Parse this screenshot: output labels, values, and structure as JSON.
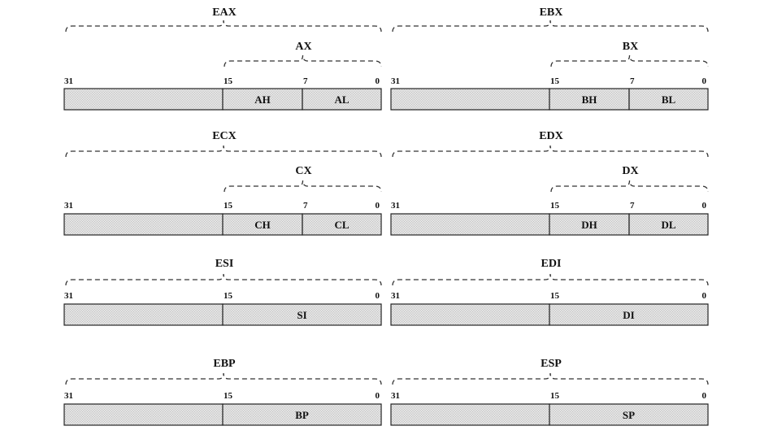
{
  "registers": [
    {
      "name": "EAX",
      "sub": "AX",
      "bits": [
        "31",
        "15",
        "7",
        "0"
      ],
      "parts": [
        "AH",
        "AL"
      ]
    },
    {
      "name": "EBX",
      "sub": "BX",
      "bits": [
        "31",
        "15",
        "7",
        "0"
      ],
      "parts": [
        "BH",
        "BL"
      ]
    },
    {
      "name": "ECX",
      "sub": "CX",
      "bits": [
        "31",
        "15",
        "7",
        "0"
      ],
      "parts": [
        "CH",
        "CL"
      ]
    },
    {
      "name": "EDX",
      "sub": "DX",
      "bits": [
        "31",
        "15",
        "7",
        "0"
      ],
      "parts": [
        "DH",
        "DL"
      ]
    },
    {
      "name": "ESI",
      "sub": "",
      "bits": [
        "31",
        "15",
        "0"
      ],
      "parts": [
        "SI"
      ]
    },
    {
      "name": "EDI",
      "sub": "",
      "bits": [
        "31",
        "15",
        "0"
      ],
      "parts": [
        "DI"
      ]
    },
    {
      "name": "EBP",
      "sub": "",
      "bits": [
        "31",
        "15",
        "0"
      ],
      "parts": [
        "BP"
      ]
    },
    {
      "name": "ESP",
      "sub": "",
      "bits": [
        "31",
        "15",
        "0"
      ],
      "parts": [
        "SP"
      ]
    }
  ]
}
